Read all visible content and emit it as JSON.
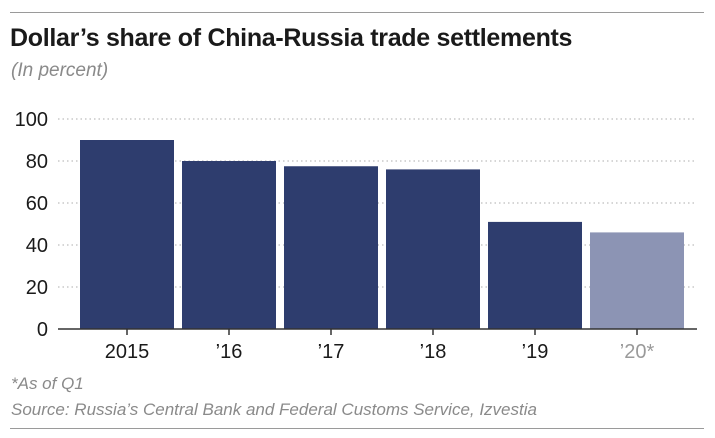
{
  "chart_data": {
    "type": "bar",
    "title": "Dollar’s share of China-Russia trade settlements",
    "subtitle": "(In percent)",
    "categories": [
      "2015",
      "’16",
      "’17",
      "’18",
      "’19",
      "’20*"
    ],
    "values": [
      90,
      80,
      77.5,
      76,
      51,
      46
    ],
    "highlighted_category": "’20*",
    "ylim": [
      0,
      100
    ],
    "yticks": [
      0,
      20,
      40,
      60,
      80,
      100
    ],
    "grid": "dotted horizontal",
    "colors": {
      "bar": "#2e3d6e",
      "bar_highlight": "#8c94b4",
      "grid": "#bdbdbd",
      "axis_text": "#1a1a1a",
      "highlight_text": "#9a9a9a"
    }
  },
  "footnote": "*As of Q1",
  "source": "Source: Russia’s Central Bank and Federal Customs Service, Izvestia"
}
